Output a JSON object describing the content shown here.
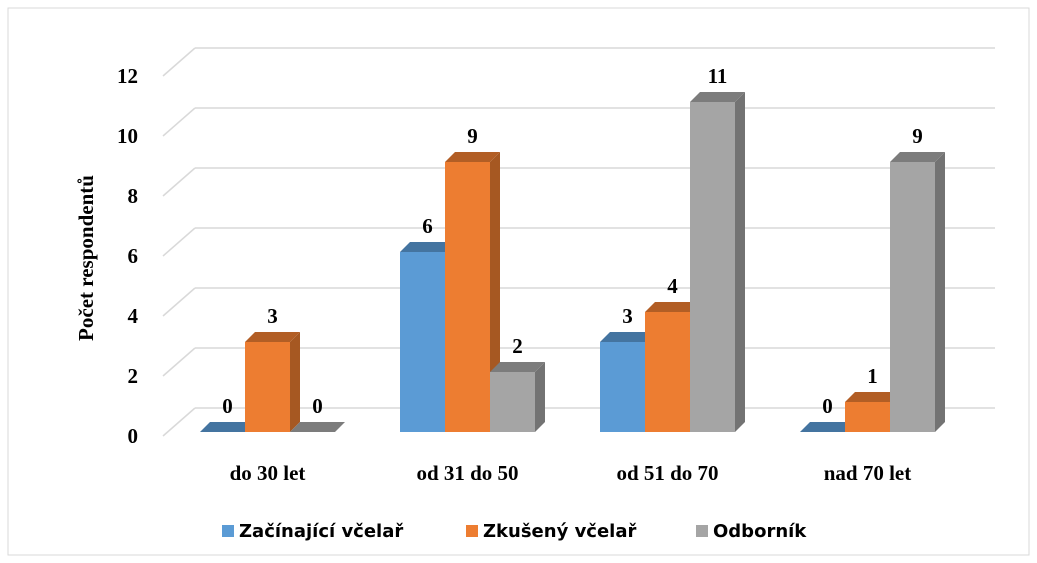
{
  "chart_data": {
    "type": "bar3d",
    "y_label": "Počet respondentů",
    "categories": [
      "do 30 let",
      "od 31 do 50",
      "od 51 do 70",
      "nad 70 let"
    ],
    "series": [
      {
        "name": "Začínající včelař",
        "color": "#5b9bd5",
        "values": [
          0,
          6,
          3,
          0
        ]
      },
      {
        "name": "Zkušený včelař",
        "color": "#ed7d31",
        "values": [
          3,
          9,
          4,
          1
        ]
      },
      {
        "name": "Odborník",
        "color": "#a5a5a5",
        "values": [
          0,
          2,
          11,
          9
        ]
      }
    ],
    "ylim": [
      0,
      12
    ],
    "yticks": [
      0,
      2,
      4,
      6,
      8,
      10,
      12
    ],
    "grid": true,
    "legend": "bottom"
  }
}
